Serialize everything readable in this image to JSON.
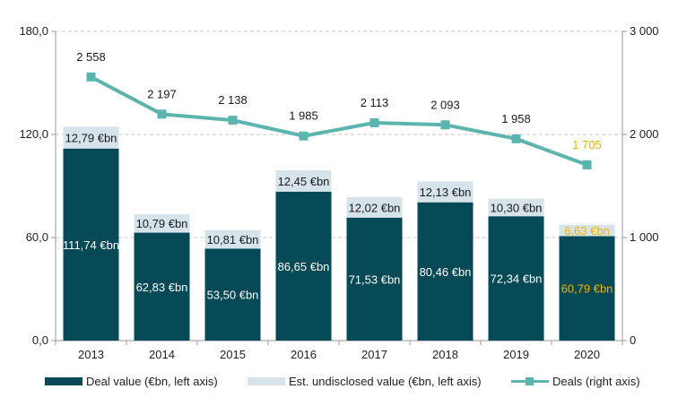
{
  "chart_data": {
    "type": "bar",
    "categories": [
      "2013",
      "2014",
      "2015",
      "2016",
      "2017",
      "2018",
      "2019",
      "2020"
    ],
    "series": [
      {
        "name": "Deal value (€bn, left axis)",
        "type": "bar",
        "axis": "left",
        "stack": "value",
        "color": "#064a58",
        "values": [
          111.74,
          62.83,
          53.5,
          86.65,
          71.53,
          80.46,
          72.34,
          60.79
        ],
        "labels": [
          "111,74 €bn",
          "62,83 €bn",
          "53,50 €bn",
          "86,65 €bn",
          "71,53 €bn",
          "80,46 €bn",
          "72,34 €bn",
          "60,79 €bn"
        ]
      },
      {
        "name": "Est. undisclosed value (€bn, left axis)",
        "type": "bar",
        "axis": "left",
        "stack": "value",
        "color": "#d6e3ea",
        "values": [
          12.79,
          10.79,
          10.81,
          12.45,
          12.02,
          12.13,
          10.3,
          6.63
        ],
        "labels": [
          "12,79 €bn",
          "10,79 €bn",
          "10,81 €bn",
          "12,45 €bn",
          "12,02 €bn",
          "12,13 €bn",
          "10,30 €bn",
          "6,63 €bn"
        ]
      },
      {
        "name": "Deals (right axis)",
        "type": "line",
        "axis": "right",
        "color": "#5bb5ae",
        "values": [
          2558,
          2197,
          2138,
          1985,
          2113,
          2093,
          1958,
          1705
        ],
        "labels": [
          "2 558",
          "2 197",
          "2 138",
          "1 985",
          "2 113",
          "2 093",
          "1 958",
          "1 705"
        ]
      }
    ],
    "y_left": {
      "ylim": [
        0,
        180
      ],
      "ticks": [
        "0,0",
        "60,0",
        "120,0",
        "180,0"
      ]
    },
    "y_right": {
      "ylim": [
        0,
        3000
      ],
      "ticks": [
        "0",
        "1 000",
        "2 000",
        "3 000"
      ]
    },
    "highlight_color": "#f0b400",
    "highlight_category": "2020",
    "grid": "horizontal dashed",
    "legend_position": "bottom"
  }
}
